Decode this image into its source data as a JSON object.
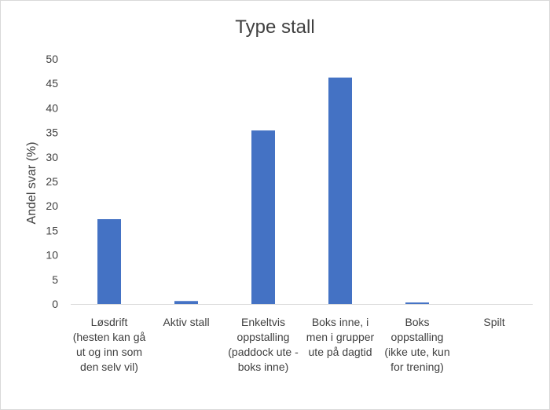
{
  "chart_data": {
    "type": "bar",
    "title": "Type stall",
    "xlabel": "",
    "ylabel": "Andel svar (%)",
    "ylim": [
      0,
      50
    ],
    "yticks": [
      0,
      5,
      10,
      15,
      20,
      25,
      30,
      35,
      40,
      45,
      50
    ],
    "grid": false,
    "categories": [
      "Løsdrift (hesten kan gå ut og inn som den selv vil)",
      "Aktiv stall",
      "Enkeltvis oppstalling (paddock ute - boks inne)",
      "Boks inne, i men i grupper ute på dagtid",
      "Boks oppstalling (ikke ute, kun for trening)",
      "Spilt"
    ],
    "values": [
      17.3,
      0.6,
      35.4,
      46.2,
      0.3,
      0
    ],
    "bar_color": "#4472c4"
  }
}
